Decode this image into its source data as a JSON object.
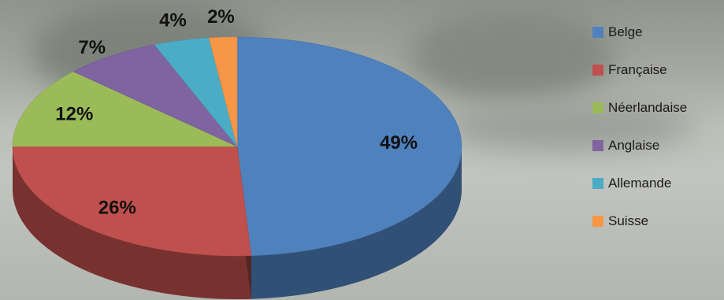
{
  "chart_data": {
    "type": "pie",
    "style": "3d",
    "title": "",
    "legend_position": "right",
    "slices": [
      {
        "name": "Belge",
        "value": 49,
        "label": "49%",
        "color": "#4f81bd"
      },
      {
        "name": "Française",
        "value": 26,
        "label": "26%",
        "color": "#c0504d"
      },
      {
        "name": "Néerlandaise",
        "value": 12,
        "label": "12%",
        "color": "#9bbb59"
      },
      {
        "name": "Anglaise",
        "value": 7,
        "label": "7%",
        "color": "#8064a2"
      },
      {
        "name": "Allemande",
        "value": 4,
        "label": "4%",
        "color": "#4bacc6"
      },
      {
        "name": "Suisse",
        "value": 2,
        "label": "2%",
        "color": "#f79646"
      }
    ]
  }
}
